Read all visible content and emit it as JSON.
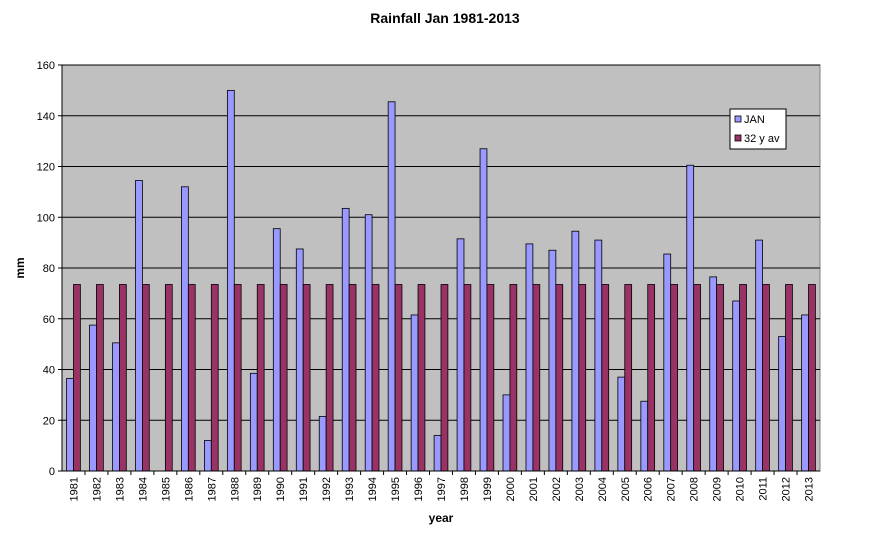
{
  "chart_data": {
    "type": "bar",
    "title": "Rainfall Jan 1981-2013",
    "xlabel": "year",
    "ylabel": "mm",
    "ylim": [
      0,
      160
    ],
    "yticks": [
      0,
      20,
      40,
      60,
      80,
      100,
      120,
      140,
      160
    ],
    "grid": true,
    "legend_position": "top-right",
    "categories": [
      "1981",
      "1982",
      "1983",
      "1984",
      "1985",
      "1986",
      "1987",
      "1988",
      "1989",
      "1990",
      "1991",
      "1992",
      "1993",
      "1994",
      "1995",
      "1996",
      "1997",
      "1998",
      "1999",
      "2000",
      "2001",
      "2002",
      "2003",
      "2004",
      "2005",
      "2006",
      "2007",
      "2008",
      "2009",
      "2010",
      "2011",
      "2012",
      "2013"
    ],
    "series": [
      {
        "name": "JAN",
        "color": "#9999ff",
        "values": [
          36.5,
          57.5,
          50.5,
          114.5,
          0,
          112,
          12,
          150,
          38.5,
          95.5,
          87.5,
          21.5,
          103.5,
          101,
          145.5,
          61.5,
          14,
          91.5,
          127,
          30,
          89.5,
          87,
          94.5,
          91,
          37,
          27.5,
          85.5,
          120.5,
          76.5,
          67,
          91,
          53,
          61.5
        ]
      },
      {
        "name": "32 y av",
        "color": "#993366",
        "values": [
          73.5,
          73.5,
          73.5,
          73.5,
          73.5,
          73.5,
          73.5,
          73.5,
          73.5,
          73.5,
          73.5,
          73.5,
          73.5,
          73.5,
          73.5,
          73.5,
          73.5,
          73.5,
          73.5,
          73.5,
          73.5,
          73.5,
          73.5,
          73.5,
          73.5,
          73.5,
          73.5,
          73.5,
          73.5,
          73.5,
          73.5,
          73.5,
          73.5
        ]
      }
    ],
    "colors": {
      "plot_background": "#c0c0c0",
      "grid": "#000000",
      "bar_outline": "#000000"
    }
  }
}
